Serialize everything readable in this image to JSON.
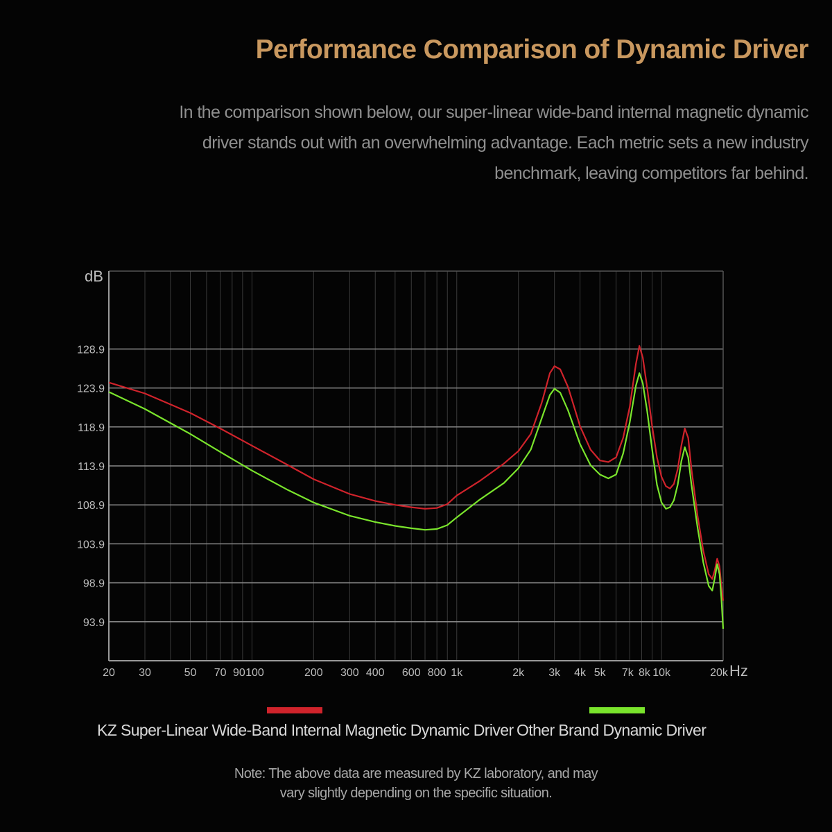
{
  "header": {
    "title": "Performance Comparison of Dynamic Driver",
    "subtitle_lines": [
      "In the comparison shown below, our super-linear wide-band internal magnetic dynamic",
      "driver stands out with an overwhelming advantage. Each metric sets a new industry",
      "benchmark, leaving competitors far behind."
    ]
  },
  "chart_data": {
    "type": "line",
    "xlabel": "Hz",
    "ylabel": "dB",
    "x_scale": "log",
    "xlim": [
      20,
      20000
    ],
    "ylim": [
      88.9,
      138.9
    ],
    "grid": true,
    "x_ticks": [
      {
        "value": 20,
        "label": "20"
      },
      {
        "value": 30,
        "label": "30"
      },
      {
        "value": 50,
        "label": "50"
      },
      {
        "value": 70,
        "label": "70"
      },
      {
        "value": 90,
        "label": "90"
      },
      {
        "value": 100,
        "label": "100"
      },
      {
        "value": 200,
        "label": "200"
      },
      {
        "value": 300,
        "label": "300"
      },
      {
        "value": 400,
        "label": "400"
      },
      {
        "value": 600,
        "label": "600"
      },
      {
        "value": 800,
        "label": "800"
      },
      {
        "value": 1000,
        "label": "1k"
      },
      {
        "value": 2000,
        "label": "2k"
      },
      {
        "value": 3000,
        "label": "3k"
      },
      {
        "value": 4000,
        "label": "4k"
      },
      {
        "value": 5000,
        "label": "5k"
      },
      {
        "value": 7000,
        "label": "7k"
      },
      {
        "value": 8000,
        "label": "8k"
      },
      {
        "value": 10000,
        "label": "10k"
      },
      {
        "value": 20000,
        "label": "20k"
      }
    ],
    "x_gridlines": [
      20,
      30,
      40,
      50,
      60,
      70,
      80,
      90,
      100,
      200,
      300,
      400,
      500,
      600,
      700,
      800,
      900,
      1000,
      2000,
      3000,
      4000,
      5000,
      6000,
      7000,
      8000,
      9000,
      10000,
      20000
    ],
    "y_ticks": [
      {
        "value": 93.9,
        "label": "93.9"
      },
      {
        "value": 98.9,
        "label": "98.9"
      },
      {
        "value": 103.9,
        "label": "103.9"
      },
      {
        "value": 108.9,
        "label": "108.9"
      },
      {
        "value": 113.9,
        "label": "113.9"
      },
      {
        "value": 118.9,
        "label": "118.9"
      },
      {
        "value": 123.9,
        "label": "123.9"
      },
      {
        "value": 128.9,
        "label": "128.9"
      }
    ],
    "legend_placement": "bottom",
    "series": [
      {
        "name": "KZ Super-Linear Wide-Band Internal Magnetic Dynamic Driver",
        "color": "#d0232b",
        "points": [
          [
            20,
            124.6
          ],
          [
            30,
            123.2
          ],
          [
            50,
            120.7
          ],
          [
            70,
            118.7
          ],
          [
            100,
            116.5
          ],
          [
            150,
            114.0
          ],
          [
            200,
            112.2
          ],
          [
            300,
            110.3
          ],
          [
            400,
            109.4
          ],
          [
            500,
            108.9
          ],
          [
            600,
            108.6
          ],
          [
            700,
            108.4
          ],
          [
            800,
            108.5
          ],
          [
            900,
            109.0
          ],
          [
            1000,
            110.1
          ],
          [
            1300,
            112.0
          ],
          [
            1700,
            114.2
          ],
          [
            2000,
            115.8
          ],
          [
            2300,
            118.0
          ],
          [
            2600,
            122.0
          ],
          [
            2850,
            125.8
          ],
          [
            3000,
            126.7
          ],
          [
            3200,
            126.3
          ],
          [
            3500,
            124.0
          ],
          [
            4000,
            119.0
          ],
          [
            4500,
            116.0
          ],
          [
            5000,
            114.6
          ],
          [
            5500,
            114.4
          ],
          [
            6000,
            115.0
          ],
          [
            6500,
            117.5
          ],
          [
            7000,
            121.5
          ],
          [
            7500,
            127.0
          ],
          [
            7800,
            129.3
          ],
          [
            8100,
            127.8
          ],
          [
            8500,
            124.0
          ],
          [
            9000,
            119.0
          ],
          [
            9500,
            115.0
          ],
          [
            10000,
            112.5
          ],
          [
            10500,
            111.3
          ],
          [
            11000,
            111.0
          ],
          [
            11500,
            111.6
          ],
          [
            12000,
            113.5
          ],
          [
            12500,
            116.5
          ],
          [
            13000,
            118.7
          ],
          [
            13500,
            117.5
          ],
          [
            14000,
            113.5
          ],
          [
            15000,
            107.5
          ],
          [
            16000,
            103.0
          ],
          [
            17000,
            100.0
          ],
          [
            17700,
            99.4
          ],
          [
            18200,
            100.5
          ],
          [
            18700,
            102.0
          ],
          [
            19200,
            101.0
          ],
          [
            19600,
            98.5
          ],
          [
            20000,
            96.6
          ]
        ]
      },
      {
        "name": "Other Brand Dynamic Driver",
        "color": "#7ae42c",
        "points": [
          [
            20,
            123.4
          ],
          [
            30,
            121.2
          ],
          [
            50,
            118.0
          ],
          [
            70,
            115.7
          ],
          [
            100,
            113.3
          ],
          [
            150,
            110.8
          ],
          [
            200,
            109.2
          ],
          [
            300,
            107.5
          ],
          [
            400,
            106.7
          ],
          [
            500,
            106.2
          ],
          [
            600,
            105.9
          ],
          [
            700,
            105.7
          ],
          [
            800,
            105.8
          ],
          [
            900,
            106.3
          ],
          [
            1000,
            107.3
          ],
          [
            1300,
            109.6
          ],
          [
            1700,
            111.7
          ],
          [
            2000,
            113.6
          ],
          [
            2300,
            116.0
          ],
          [
            2600,
            120.0
          ],
          [
            2850,
            123.0
          ],
          [
            3000,
            123.8
          ],
          [
            3200,
            123.3
          ],
          [
            3500,
            121.0
          ],
          [
            4000,
            116.7
          ],
          [
            4500,
            114.0
          ],
          [
            5000,
            112.8
          ],
          [
            5500,
            112.3
          ],
          [
            6000,
            112.8
          ],
          [
            6500,
            115.5
          ],
          [
            7000,
            119.5
          ],
          [
            7500,
            124.2
          ],
          [
            7800,
            125.8
          ],
          [
            8100,
            124.5
          ],
          [
            8500,
            121.0
          ],
          [
            9000,
            116.0
          ],
          [
            9500,
            111.5
          ],
          [
            10000,
            109.2
          ],
          [
            10500,
            108.4
          ],
          [
            11000,
            108.6
          ],
          [
            11500,
            109.5
          ],
          [
            12000,
            111.5
          ],
          [
            12500,
            114.5
          ],
          [
            13000,
            116.3
          ],
          [
            13500,
            115.0
          ],
          [
            14000,
            111.5
          ],
          [
            15000,
            106.0
          ],
          [
            16000,
            101.5
          ],
          [
            17000,
            98.5
          ],
          [
            17700,
            97.9
          ],
          [
            18200,
            99.5
          ],
          [
            18700,
            101.3
          ],
          [
            19200,
            100.0
          ],
          [
            19600,
            97.0
          ],
          [
            20000,
            93.0
          ]
        ]
      }
    ]
  },
  "note_lines": [
    "Note: The above data are measured by KZ laboratory, and may",
    "vary slightly depending on the specific situation."
  ]
}
